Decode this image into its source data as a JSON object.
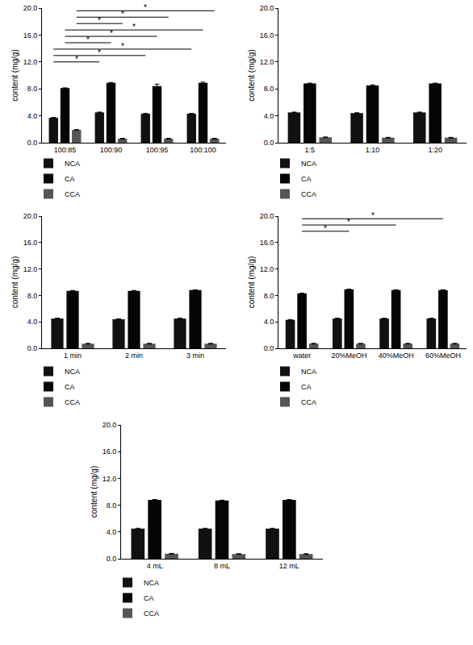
{
  "chart_data": [
    {
      "type": "bar",
      "y_label": "content (mg/g)",
      "categories": [
        "100:85",
        "100:90",
        "100:95",
        "100:100"
      ],
      "series": [
        {
          "name": "NCA",
          "color": "#111111",
          "values": [
            3.7,
            4.5,
            4.3,
            4.3
          ],
          "errors": [
            0.05,
            0.05,
            0.05,
            0.05
          ]
        },
        {
          "name": "CA",
          "color": "#050505",
          "values": [
            8.1,
            8.9,
            8.4,
            8.9
          ],
          "errors": [
            0.05,
            0.05,
            0.3,
            0.1
          ]
        },
        {
          "name": "CCA",
          "color": "#555555",
          "values": [
            1.9,
            0.6,
            0.6,
            0.6
          ],
          "errors": [
            0.05,
            0.05,
            0.05,
            0.05
          ]
        }
      ],
      "comparisons": [
        {
          "series": "CCA",
          "from": "100:85",
          "to": "100:100",
          "label": "*"
        },
        {
          "series": "CCA",
          "from": "100:85",
          "to": "100:95",
          "label": "*"
        },
        {
          "series": "CCA",
          "from": "100:85",
          "to": "100:90",
          "label": "*"
        },
        {
          "series": "CA",
          "from": "100:85",
          "to": "100:100",
          "label": "*"
        },
        {
          "series": "CA",
          "from": "100:85",
          "to": "100:95",
          "label": "*"
        },
        {
          "series": "CA",
          "from": "100:85",
          "to": "100:90",
          "label": "*"
        },
        {
          "series": "NCA",
          "from": "100:85",
          "to": "100:100",
          "label": "*"
        },
        {
          "series": "NCA",
          "from": "100:85",
          "to": "100:95",
          "label": "*"
        },
        {
          "series": "NCA",
          "from": "100:85",
          "to": "100:90",
          "label": "*"
        }
      ],
      "ylim": [
        0,
        20
      ],
      "yticks": [
        {
          "value": 0,
          "label": "0.0"
        },
        {
          "value": 4,
          "label": "4.0"
        },
        {
          "value": 8,
          "label": "8.0"
        },
        {
          "value": 12,
          "label": "12.0"
        },
        {
          "value": 16,
          "label": "16.0"
        },
        {
          "value": 20,
          "label": "20.0"
        }
      ],
      "grid": false,
      "legend": "bottom left"
    },
    {
      "type": "bar",
      "y_label": "content (mg/g)",
      "categories": [
        "1:5",
        "1:10",
        "1:20"
      ],
      "series": [
        {
          "name": "NCA",
          "color": "#111111",
          "values": [
            4.5,
            4.4,
            4.5
          ],
          "errors": [
            0.05,
            0.05,
            0.05
          ]
        },
        {
          "name": "CA",
          "color": "#050505",
          "values": [
            8.8,
            8.5,
            8.8
          ],
          "errors": [
            0.05,
            0.1,
            0.05
          ]
        },
        {
          "name": "CCA",
          "color": "#555555",
          "values": [
            0.8,
            0.75,
            0.75
          ],
          "errors": [
            0.05,
            0.05,
            0.05
          ]
        }
      ],
      "ylim": [
        0,
        20
      ],
      "yticks": [
        {
          "value": 0,
          "label": "0.0"
        },
        {
          "value": 4,
          "label": "4.0"
        },
        {
          "value": 8,
          "label": "8.0"
        },
        {
          "value": 12,
          "label": "12.0"
        },
        {
          "value": 16,
          "label": "16.0"
        },
        {
          "value": 20,
          "label": "20.0"
        }
      ],
      "grid": false,
      "legend": "bottom left"
    },
    {
      "type": "bar",
      "y_label": "content (mg/g)",
      "categories": [
        "1 min",
        "2 min",
        "3 min"
      ],
      "series": [
        {
          "name": "NCA",
          "color": "#111111",
          "values": [
            4.5,
            4.4,
            4.5
          ],
          "errors": [
            0.05,
            0.05,
            0.05
          ]
        },
        {
          "name": "CA",
          "color": "#050505",
          "values": [
            8.7,
            8.7,
            8.8
          ],
          "errors": [
            0.05,
            0.05,
            0.05
          ]
        },
        {
          "name": "CCA",
          "color": "#555555",
          "values": [
            0.7,
            0.7,
            0.7
          ],
          "errors": [
            0.05,
            0.05,
            0.05
          ]
        }
      ],
      "ylim": [
        0,
        20
      ],
      "yticks": [
        {
          "value": 0,
          "label": "0.0"
        },
        {
          "value": 4,
          "label": "4.0"
        },
        {
          "value": 8,
          "label": "8.0"
        },
        {
          "value": 12,
          "label": "12.0"
        },
        {
          "value": 16,
          "label": "16.0"
        },
        {
          "value": 20,
          "label": "20.0"
        }
      ],
      "grid": false,
      "legend": "bottom left"
    },
    {
      "type": "bar",
      "y_label": "content (mg/g)",
      "categories": [
        "water",
        "20%MeOH",
        "40%MeOH",
        "60%MeOH"
      ],
      "series": [
        {
          "name": "NCA",
          "color": "#111111",
          "values": [
            4.3,
            4.5,
            4.5,
            4.5
          ],
          "errors": [
            0.05,
            0.05,
            0.05,
            0.05
          ]
        },
        {
          "name": "CA",
          "color": "#050505",
          "values": [
            8.3,
            8.9,
            8.8,
            8.8
          ],
          "errors": [
            0.05,
            0.05,
            0.05,
            0.05
          ]
        },
        {
          "name": "CCA",
          "color": "#555555",
          "values": [
            0.7,
            0.7,
            0.7,
            0.7
          ],
          "errors": [
            0.05,
            0.05,
            0.05,
            0.05
          ]
        }
      ],
      "comparisons": [
        {
          "series": "CA",
          "from": "water",
          "to": "60%MeOH",
          "label": "*"
        },
        {
          "series": "CA",
          "from": "water",
          "to": "40%MeOH",
          "label": "*"
        },
        {
          "series": "CA",
          "from": "water",
          "to": "20%MeOH",
          "label": "*"
        }
      ],
      "ylim": [
        0,
        20
      ],
      "yticks": [
        {
          "value": 0,
          "label": "0.0"
        },
        {
          "value": 4,
          "label": "4.0"
        },
        {
          "value": 8,
          "label": "8.0"
        },
        {
          "value": 12,
          "label": "12.0"
        },
        {
          "value": 16,
          "label": "16.0"
        },
        {
          "value": 20,
          "label": "20.0"
        }
      ],
      "grid": false,
      "legend": "bottom left"
    },
    {
      "type": "bar",
      "y_label": "content (mg/g)",
      "categories": [
        "4 mL",
        "8 mL",
        "12 mL"
      ],
      "series": [
        {
          "name": "NCA",
          "color": "#111111",
          "values": [
            4.5,
            4.5,
            4.5
          ],
          "errors": [
            0.05,
            0.05,
            0.05
          ]
        },
        {
          "name": "CA",
          "color": "#050505",
          "values": [
            8.8,
            8.7,
            8.8
          ],
          "errors": [
            0.05,
            0.05,
            0.05
          ]
        },
        {
          "name": "CCA",
          "color": "#555555",
          "values": [
            0.75,
            0.7,
            0.7
          ],
          "errors": [
            0.05,
            0.05,
            0.05
          ]
        }
      ],
      "ylim": [
        0,
        20
      ],
      "yticks": [
        {
          "value": 0,
          "label": "0.0"
        },
        {
          "value": 4,
          "label": "4.0"
        },
        {
          "value": 8,
          "label": "8.0"
        },
        {
          "value": 12,
          "label": "12.0"
        },
        {
          "value": 16,
          "label": "16.0"
        },
        {
          "value": 20,
          "label": "20.0"
        }
      ],
      "grid": false,
      "legend": "bottom left"
    }
  ]
}
